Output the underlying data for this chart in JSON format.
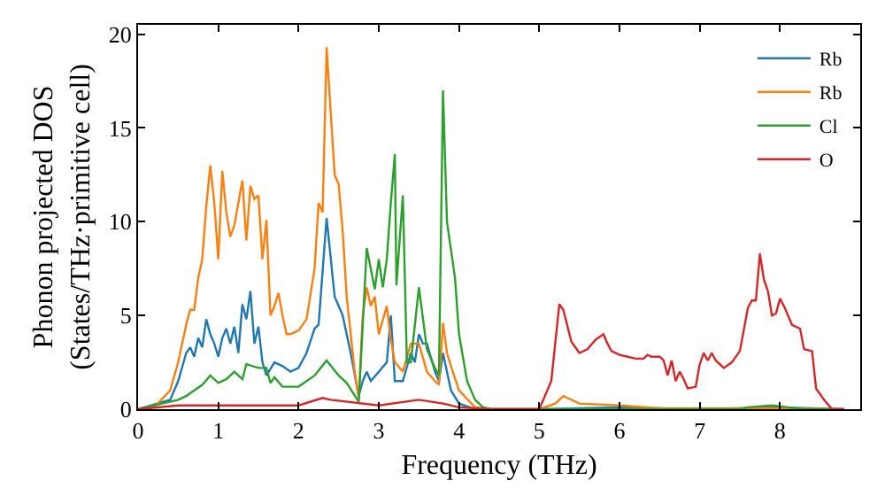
{
  "chart_data": {
    "type": "line",
    "xlabel": "Frequency (THz)",
    "ylabel": "Phonon projected DOS\n(States/THz·primitive cell)",
    "xlim": [
      0,
      9
    ],
    "ylim": [
      0,
      20.5
    ],
    "xticks": [
      0,
      1,
      2,
      3,
      4,
      5,
      6,
      7,
      8
    ],
    "yticks": [
      0,
      5,
      10,
      15,
      20
    ],
    "grid": false,
    "legend": "top right",
    "marker": "none",
    "line_style": "solid",
    "series": [
      {
        "name": "Rb",
        "color": "#1f77b4",
        "x": [
          0,
          0.4,
          0.5,
          0.6,
          0.65,
          0.7,
          0.75,
          0.8,
          0.85,
          0.9,
          0.95,
          1.0,
          1.05,
          1.1,
          1.15,
          1.2,
          1.25,
          1.3,
          1.35,
          1.4,
          1.45,
          1.5,
          1.55,
          1.6,
          1.7,
          1.8,
          1.9,
          2.0,
          2.1,
          2.2,
          2.25,
          2.35,
          2.45,
          2.55,
          2.65,
          2.75,
          2.8,
          2.85,
          2.9,
          3.0,
          3.1,
          3.15,
          3.2,
          3.3,
          3.4,
          3.45,
          3.5,
          3.55,
          3.6,
          3.7,
          3.75,
          3.8,
          3.85,
          3.9,
          4.0,
          4.2,
          5.0,
          6.0,
          7.0,
          8.0,
          8.8
        ],
        "values": [
          0,
          0.5,
          1.5,
          3,
          3.3,
          2.8,
          3.8,
          3.3,
          4.8,
          4,
          3.5,
          2.8,
          3.8,
          4.3,
          3.5,
          4.4,
          3,
          5.6,
          4.8,
          6.3,
          3.5,
          4.4,
          2.5,
          1.8,
          2.5,
          2.3,
          2,
          2.2,
          3,
          4.3,
          4.5,
          10.2,
          6,
          5,
          3,
          0.7,
          1.5,
          2,
          1.5,
          2,
          2.5,
          5,
          1.5,
          1.5,
          3,
          2.5,
          4,
          3.5,
          3.5,
          2,
          1.5,
          3,
          2,
          1,
          0.3,
          0,
          0,
          0.1,
          0,
          0.1,
          0
        ]
      },
      {
        "name": "Rb",
        "color": "#ff7f0e",
        "x": [
          0,
          0.2,
          0.4,
          0.5,
          0.6,
          0.65,
          0.7,
          0.75,
          0.8,
          0.85,
          0.9,
          0.95,
          1.0,
          1.05,
          1.1,
          1.15,
          1.2,
          1.25,
          1.3,
          1.35,
          1.4,
          1.45,
          1.5,
          1.55,
          1.6,
          1.65,
          1.7,
          1.75,
          1.8,
          1.85,
          1.9,
          2.0,
          2.1,
          2.2,
          2.25,
          2.3,
          2.35,
          2.45,
          2.5,
          2.55,
          2.6,
          2.7,
          2.75,
          2.8,
          2.85,
          2.9,
          2.95,
          3.0,
          3.1,
          3.15,
          3.2,
          3.3,
          3.4,
          3.5,
          3.6,
          3.7,
          3.75,
          3.8,
          3.85,
          3.9,
          4.0,
          4.2,
          4.4,
          5.0,
          5.2,
          5.3,
          5.5,
          6.0,
          6.5,
          7.0,
          8.0,
          8.8
        ],
        "values": [
          0,
          0.1,
          1,
          2.5,
          4.5,
          5.3,
          5.3,
          7,
          8,
          10.8,
          13,
          11,
          8,
          12.7,
          10.5,
          9.2,
          9.8,
          11,
          12.2,
          9,
          11.9,
          11.2,
          11.4,
          8,
          10.1,
          5,
          5.5,
          6.2,
          5,
          4,
          4,
          4.2,
          4.8,
          7.5,
          11,
          10.5,
          19.3,
          12.5,
          12,
          9.5,
          6,
          2,
          0.6,
          5,
          6.5,
          5.5,
          6,
          4,
          5.5,
          3.7,
          2.5,
          2,
          3.5,
          3.5,
          2,
          1.5,
          1.3,
          4.6,
          3,
          2.3,
          1,
          0.1,
          0,
          0,
          0.3,
          0.7,
          0.3,
          0.2,
          0.05,
          0.05,
          0.05,
          0
        ]
      },
      {
        "name": "Cl",
        "color": "#2ca02c",
        "x": [
          0,
          0.5,
          0.6,
          0.7,
          0.8,
          0.9,
          1.0,
          1.1,
          1.2,
          1.3,
          1.35,
          1.5,
          1.6,
          1.65,
          1.7,
          1.8,
          2.0,
          2.2,
          2.35,
          2.5,
          2.6,
          2.75,
          2.85,
          2.9,
          2.95,
          3.0,
          3.05,
          3.1,
          3.15,
          3.2,
          3.22,
          3.3,
          3.35,
          3.4,
          3.5,
          3.6,
          3.7,
          3.75,
          3.8,
          3.85,
          3.95,
          4.0,
          4.1,
          4.2,
          4.3,
          4.4,
          7.5,
          7.6,
          7.9,
          8.1,
          8.3,
          8.8
        ],
        "values": [
          0,
          0.5,
          0.7,
          1,
          1.3,
          1.8,
          1.4,
          1.6,
          2,
          1.6,
          2.4,
          2.2,
          2.2,
          1.4,
          1.7,
          1.2,
          1.2,
          1.8,
          2.6,
          1.8,
          1.4,
          0.4,
          8.6,
          7.5,
          6.4,
          8,
          6.5,
          8,
          11,
          13.6,
          6.6,
          11.4,
          2.5,
          2.5,
          6.5,
          3.2,
          2.2,
          1.8,
          17,
          10,
          7,
          4,
          1.5,
          0.5,
          0.1,
          0,
          0,
          0.1,
          0.2,
          0.1,
          0,
          0
        ]
      },
      {
        "name": "O",
        "color": "#d62728",
        "x": [
          0,
          0.5,
          1.0,
          1.5,
          2.0,
          2.3,
          2.4,
          3.0,
          3.5,
          3.8,
          4.0,
          4.4,
          5.0,
          5.15,
          5.25,
          5.3,
          5.4,
          5.5,
          5.6,
          5.7,
          5.8,
          5.85,
          5.9,
          6.0,
          6.1,
          6.2,
          6.3,
          6.35,
          6.4,
          6.5,
          6.55,
          6.6,
          6.65,
          6.7,
          6.75,
          6.8,
          6.85,
          6.95,
          7.0,
          7.05,
          7.1,
          7.15,
          7.2,
          7.3,
          7.4,
          7.5,
          7.6,
          7.65,
          7.7,
          7.75,
          7.8,
          7.85,
          7.9,
          7.95,
          8.0,
          8.05,
          8.15,
          8.25,
          8.3,
          8.4,
          8.45,
          8.55,
          8.65,
          8.8
        ],
        "values": [
          0,
          0.2,
          0.2,
          0.2,
          0.2,
          0.6,
          0.5,
          0.2,
          0.5,
          0.3,
          0.1,
          0,
          0,
          1.5,
          5.6,
          5.3,
          3.6,
          3.0,
          3.2,
          3.7,
          4.0,
          3.5,
          3.1,
          2.9,
          2.8,
          2.7,
          2.7,
          2.9,
          2.8,
          2.8,
          2.6,
          1.8,
          2.6,
          1.5,
          2.0,
          1.6,
          1.1,
          1.2,
          2.4,
          3.0,
          2.6,
          3.0,
          2.6,
          2.2,
          2.5,
          3.1,
          5.4,
          5.8,
          5.8,
          8.3,
          6.9,
          6.3,
          5.0,
          5.1,
          5.9,
          5.5,
          4.5,
          4.3,
          3.2,
          3.1,
          1.1,
          0.5,
          0,
          0
        ]
      }
    ]
  }
}
